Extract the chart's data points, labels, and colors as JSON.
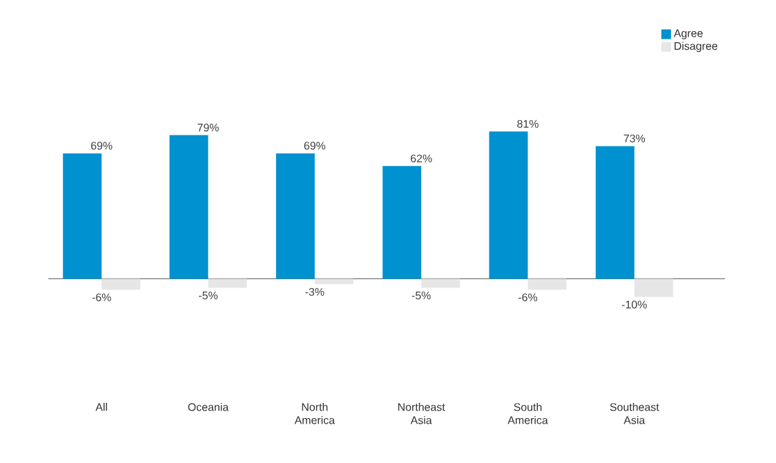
{
  "chart_data": {
    "type": "bar",
    "categories": [
      "All",
      "Oceania",
      "North America",
      "Northeast Asia",
      "South America",
      "Southeast Asia"
    ],
    "series": [
      {
        "name": "Agree",
        "color": "#0091d0",
        "values": [
          69,
          79,
          69,
          62,
          81,
          73
        ],
        "value_labels": [
          "69%",
          "79%",
          "69%",
          "62%",
          "81%",
          "73%"
        ]
      },
      {
        "name": "Disagree",
        "color": "#e6e6e7",
        "values": [
          -6,
          -5,
          -3,
          -5,
          -6,
          -10
        ],
        "value_labels": [
          "-6%",
          "-5%",
          "-3%",
          "-5%",
          "-6%",
          "-10%"
        ]
      }
    ],
    "tick_labels": "x",
    "legend": "top right"
  }
}
